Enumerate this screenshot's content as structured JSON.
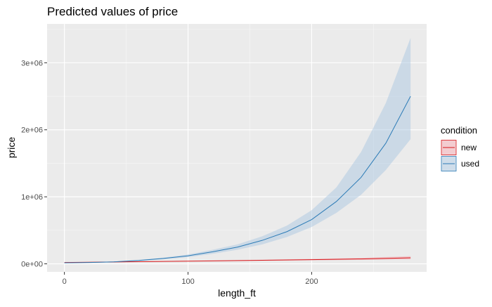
{
  "chart_data": {
    "type": "line",
    "title": "Predicted values of price",
    "xlabel": "length_ft",
    "ylabel": "price",
    "xlim": [
      -14,
      293
    ],
    "ylim": [
      -120000,
      3580000
    ],
    "x_ticks": [
      0,
      100,
      200
    ],
    "x_tick_labels": [
      "0",
      "100",
      "200"
    ],
    "y_ticks": [
      0,
      1000000,
      2000000,
      3000000
    ],
    "y_tick_labels": [
      "0e+00",
      "1e+06",
      "2e+06",
      "3e+06"
    ],
    "grid": true,
    "legend": {
      "title": "condition",
      "position": "right"
    },
    "series": [
      {
        "name": "new",
        "color": "#d7191c",
        "ribbon_color": "#f4a5ae",
        "x": [
          0,
          40,
          80,
          120,
          160,
          200,
          240,
          280
        ],
        "values": [
          20000,
          28000,
          36000,
          44000,
          53000,
          62000,
          73000,
          90000
        ],
        "lower": [
          18000,
          25000,
          32000,
          39000,
          46000,
          53000,
          60000,
          68000
        ],
        "upper": [
          22000,
          31000,
          40000,
          50000,
          61000,
          74000,
          90000,
          115000
        ]
      },
      {
        "name": "used",
        "color": "#2c7bb6",
        "ribbon_color": "#abc8e2",
        "x": [
          0,
          20,
          40,
          60,
          80,
          100,
          120,
          140,
          160,
          180,
          200,
          220,
          240,
          260,
          280
        ],
        "values": [
          15000,
          20000,
          30000,
          50000,
          80000,
          120000,
          180000,
          250000,
          350000,
          480000,
          660000,
          930000,
          1290000,
          1800000,
          2500000
        ],
        "lower": [
          12000,
          17000,
          25000,
          42000,
          68000,
          100000,
          150000,
          210000,
          290000,
          400000,
          550000,
          760000,
          1030000,
          1400000,
          1860000
        ],
        "upper": [
          18000,
          23000,
          35000,
          58000,
          92000,
          140000,
          210000,
          290000,
          410000,
          570000,
          800000,
          1140000,
          1670000,
          2400000,
          3370000
        ]
      }
    ]
  }
}
